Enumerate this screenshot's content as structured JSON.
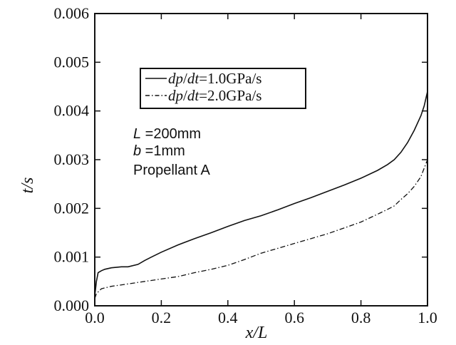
{
  "chart_data": {
    "type": "line",
    "title": "",
    "xlabel": "x/L",
    "ylabel": "t/s",
    "xlim": [
      0.0,
      1.0
    ],
    "ylim": [
      0.0,
      0.006
    ],
    "x_ticks": [
      "0.0",
      "0.2",
      "0.4",
      "0.6",
      "0.8",
      "1.0"
    ],
    "y_ticks": [
      "0.000",
      "0.001",
      "0.002",
      "0.003",
      "0.004",
      "0.005",
      "0.006"
    ],
    "grid": false,
    "legend_position": "upper-left",
    "series": [
      {
        "name": "dp/dt=1.0GPa/s",
        "style": "solid",
        "color": "#111111",
        "x": [
          0.0,
          0.005,
          0.01,
          0.02,
          0.03,
          0.05,
          0.08,
          0.1,
          0.13,
          0.15,
          0.17,
          0.2,
          0.25,
          0.3,
          0.35,
          0.4,
          0.45,
          0.5,
          0.55,
          0.6,
          0.65,
          0.7,
          0.75,
          0.8,
          0.85,
          0.88,
          0.9,
          0.92,
          0.94,
          0.96,
          0.98,
          0.99,
          1.0
        ],
        "y": [
          0.0002,
          0.0005,
          0.00068,
          0.00072,
          0.00075,
          0.00078,
          0.0008,
          0.0008,
          0.00085,
          0.00093,
          0.001,
          0.0011,
          0.00125,
          0.00138,
          0.0015,
          0.00163,
          0.00175,
          0.00185,
          0.00197,
          0.0021,
          0.00222,
          0.00235,
          0.00248,
          0.00262,
          0.00278,
          0.0029,
          0.003,
          0.00315,
          0.00335,
          0.0036,
          0.0039,
          0.0041,
          0.0044
        ]
      },
      {
        "name": "dp/dt=2.0GPa/s",
        "style": "dash-dot",
        "color": "#111111",
        "x": [
          0.0,
          0.005,
          0.02,
          0.05,
          0.1,
          0.15,
          0.2,
          0.25,
          0.3,
          0.35,
          0.4,
          0.45,
          0.5,
          0.55,
          0.6,
          0.65,
          0.7,
          0.75,
          0.8,
          0.85,
          0.88,
          0.9,
          0.92,
          0.94,
          0.96,
          0.98,
          1.0
        ],
        "y": [
          0.00015,
          0.00025,
          0.00035,
          0.0004,
          0.00045,
          0.0005,
          0.00055,
          0.0006,
          0.00068,
          0.00075,
          0.00083,
          0.00095,
          0.00108,
          0.00118,
          0.00128,
          0.00138,
          0.00148,
          0.0016,
          0.00172,
          0.00188,
          0.00198,
          0.00205,
          0.00218,
          0.0023,
          0.00245,
          0.00265,
          0.003
        ]
      }
    ],
    "legend": {
      "entries": [
        {
          "prefix": "dp",
          "slash": "/",
          "suffix": "dt",
          "value": "=1.0GPa/s"
        },
        {
          "prefix": "dp",
          "slash": "/",
          "suffix": "dt",
          "value": "=2.0GPa/s"
        }
      ]
    },
    "annotations": {
      "length_symbol": "L",
      "length_value": " =200mm",
      "width_symbol": "b",
      "width_value": " =1mm",
      "material": "Propellant A"
    }
  }
}
